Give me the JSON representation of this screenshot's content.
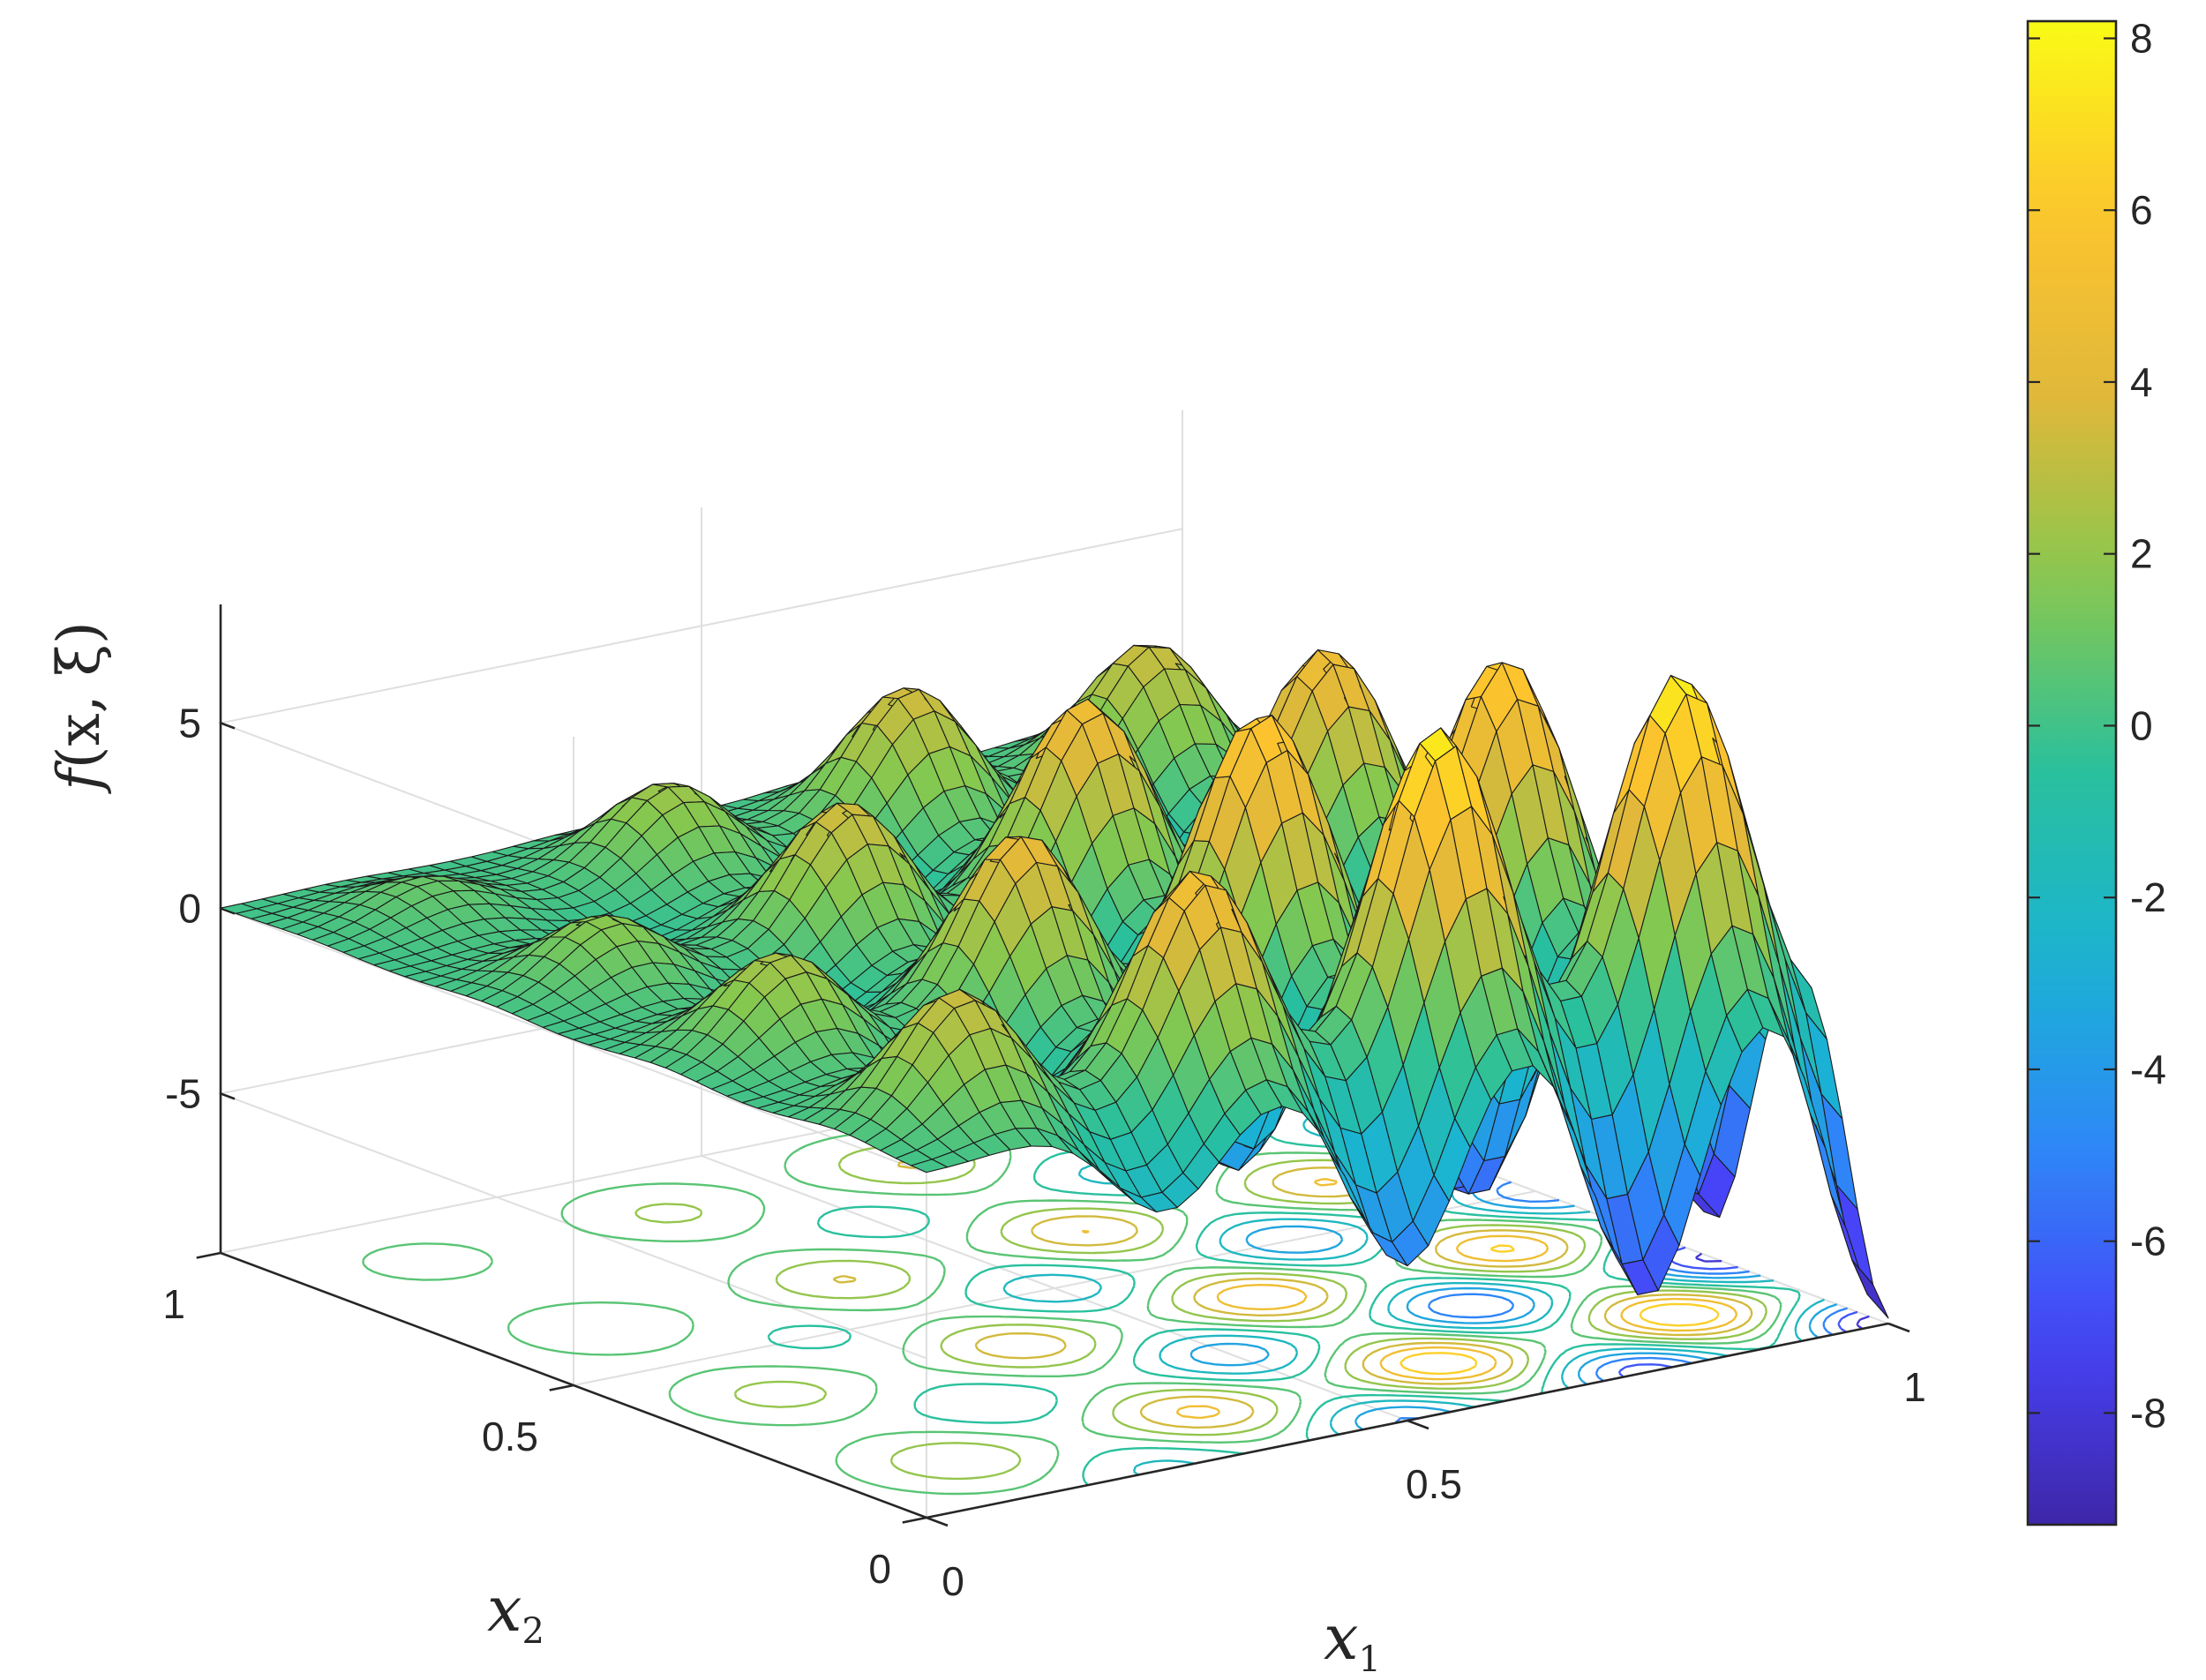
{
  "chart_data": {
    "type": "surface",
    "function_label": {
      "name": "f",
      "args": "(x, ξ)"
    },
    "xlabel": {
      "base": "x",
      "sub": "1"
    },
    "ylabel": {
      "base": "x",
      "sub": "2"
    },
    "x_range": [
      0,
      1
    ],
    "y_range": [
      0,
      1
    ],
    "zlim": [
      -9.3,
      8.2
    ],
    "x_ticks": [
      {
        "value": 0,
        "label": "0"
      },
      {
        "value": 0.5,
        "label": "0.5"
      },
      {
        "value": 1,
        "label": "1"
      }
    ],
    "y_ticks": [
      {
        "value": 0,
        "label": "0"
      },
      {
        "value": 0.5,
        "label": "0.5"
      },
      {
        "value": 1,
        "label": "1"
      }
    ],
    "z_ticks": [
      {
        "value": -5,
        "label": "-5"
      },
      {
        "value": 0,
        "label": "0"
      },
      {
        "value": 5,
        "label": "5"
      }
    ],
    "colorbar": {
      "range": [
        -9.3,
        8.2
      ],
      "ticks": [
        {
          "value": -8,
          "label": "-8"
        },
        {
          "value": -6,
          "label": "-6"
        },
        {
          "value": -4,
          "label": "-4"
        },
        {
          "value": -2,
          "label": "-2"
        },
        {
          "value": 0,
          "label": "0"
        },
        {
          "value": 2,
          "label": "2"
        },
        {
          "value": 4,
          "label": "4"
        },
        {
          "value": 6,
          "label": "6"
        },
        {
          "value": 8,
          "label": "8"
        }
      ]
    },
    "colormap": [
      "#3e26a8",
      "#4743f8",
      "#2e87f7",
      "#1ab3d3",
      "#29c09d",
      "#85c84f",
      "#e0b83a",
      "#fdc42d",
      "#f9fb15"
    ],
    "grid": true,
    "contour_projection": "floor",
    "peaks": [
      {
        "x": 0.125,
        "y": 0.875,
        "z": 1.0
      },
      {
        "x": 0.125,
        "y": 0.625,
        "z": 1.8
      },
      {
        "x": 0.125,
        "y": 0.375,
        "z": 2.6
      },
      {
        "x": 0.125,
        "y": 0.125,
        "z": 3.4
      },
      {
        "x": 0.375,
        "y": 0.875,
        "z": 2.3
      },
      {
        "x": 0.375,
        "y": 0.625,
        "z": 3.6
      },
      {
        "x": 0.375,
        "y": 0.375,
        "z": 4.6
      },
      {
        "x": 0.375,
        "y": 0.125,
        "z": 5.4
      },
      {
        "x": 0.625,
        "y": 0.875,
        "z": 3.6
      },
      {
        "x": 0.625,
        "y": 0.625,
        "z": 5.1
      },
      {
        "x": 0.625,
        "y": 0.375,
        "z": 6.6
      },
      {
        "x": 0.625,
        "y": 0.125,
        "z": 8.0
      },
      {
        "x": 0.875,
        "y": 0.875,
        "z": 3.5
      },
      {
        "x": 0.875,
        "y": 0.625,
        "z": 5.2
      },
      {
        "x": 0.875,
        "y": 0.375,
        "z": 6.8
      },
      {
        "x": 0.875,
        "y": 0.125,
        "z": 8.2
      }
    ],
    "troughs": [
      {
        "x": 0.25,
        "y": 0.75,
        "z": -0.4
      },
      {
        "x": 0.25,
        "y": 0.5,
        "z": -0.9
      },
      {
        "x": 0.25,
        "y": 0.25,
        "z": -1.8
      },
      {
        "x": 0.25,
        "y": 0.0,
        "z": -2.4
      },
      {
        "x": 0.5,
        "y": 0.75,
        "z": -1.2
      },
      {
        "x": 0.5,
        "y": 0.5,
        "z": -3.0
      },
      {
        "x": 0.5,
        "y": 0.25,
        "z": -4.5
      },
      {
        "x": 0.5,
        "y": 0.0,
        "z": -5.2
      },
      {
        "x": 0.75,
        "y": 0.75,
        "z": -2.6
      },
      {
        "x": 0.75,
        "y": 0.5,
        "z": -5.0
      },
      {
        "x": 0.75,
        "y": 0.25,
        "z": -6.6
      },
      {
        "x": 0.75,
        "y": 0.0,
        "z": -7.4
      },
      {
        "x": 1.0,
        "y": 0.75,
        "z": -3.2
      },
      {
        "x": 1.0,
        "y": 0.5,
        "z": -6.2
      },
      {
        "x": 1.0,
        "y": 0.25,
        "z": -8.4
      },
      {
        "x": 1.0,
        "y": 0.0,
        "z": -9.2
      }
    ]
  }
}
